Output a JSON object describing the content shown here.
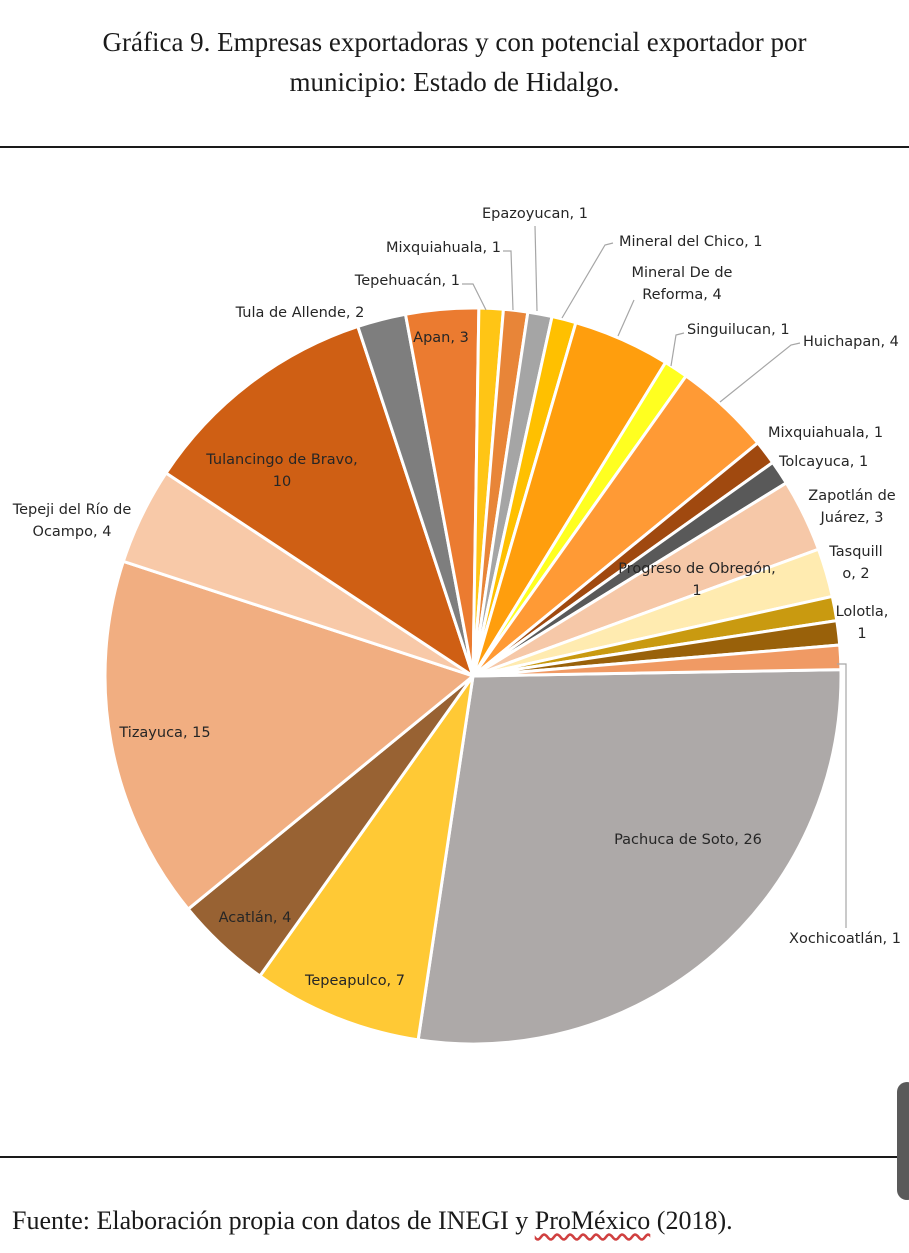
{
  "title_line1": "Gráfica 9. Empresas exportadoras y con potencial exportador por",
  "title_line2": "municipio: Estado de Hidalgo.",
  "source_prefix": "Fuente: Elaboración propia con datos de INEGI y ",
  "source_underlined": "ProMéxico",
  "source_suffix": " (2018).",
  "chart_data": {
    "type": "pie",
    "title": "Gráfica 9. Empresas exportadoras y con potencial exportador por municipio: Estado de Hidalgo.",
    "slices": [
      {
        "label": "Pachuca de Soto, 26",
        "name": "Pachuca de Soto",
        "value": 26,
        "color": "#ADA9A8"
      },
      {
        "label": "Tepeapulco, 7",
        "name": "Tepeapulco",
        "value": 7,
        "color": "#FFC935"
      },
      {
        "label": "Acatlán, 4",
        "name": "Acatlán",
        "value": 4,
        "color": "#986233"
      },
      {
        "label": "Tizayuca, 15",
        "name": "Tizayuca",
        "value": 15,
        "color": "#F1AE81"
      },
      {
        "label": "Tepeji del Río de Ocampo, 4",
        "name": "Tepeji del Río de Ocampo",
        "value": 4,
        "color": "#F8C9A8"
      },
      {
        "label": "Tulancingo de Bravo, 10",
        "name": "Tulancingo de Bravo",
        "value": 10,
        "color": "#CF5F14"
      },
      {
        "label": "Tula de Allende, 2",
        "name": "Tula de Allende",
        "value": 2,
        "color": "#7E7E7E"
      },
      {
        "label": "Apan, 3",
        "name": "Apan",
        "value": 3,
        "color": "#EB7B30"
      },
      {
        "label": "Tepehuacán, 1",
        "name": "Tepehuacán",
        "value": 1,
        "color": "#FFC515"
      },
      {
        "label": "Mixquiahuala, 1",
        "name": "Mixquiahuala",
        "value": 1,
        "color": "#E88538"
      },
      {
        "label": "Epazoyucan, 1",
        "name": "Epazoyucan",
        "value": 1,
        "color": "#A5A5A5"
      },
      {
        "label": "Mineral del Chico, 1",
        "name": "Mineral del Chico",
        "value": 1,
        "color": "#FFC000"
      },
      {
        "label": "Mineral De de Reforma, 4",
        "name": "Mineral De de Reforma",
        "value": 4,
        "color": "#FF9E0D"
      },
      {
        "label": "Singuilucan, 1",
        "name": "Singuilucan",
        "value": 1,
        "color": "#FFFF20"
      },
      {
        "label": "Huichapan, 4",
        "name": "Huichapan",
        "value": 4,
        "color": "#FF9A35"
      },
      {
        "label": "Mixquiahuala, 1",
        "name": "Mixquiahuala",
        "value": 1,
        "color": "#A0490F"
      },
      {
        "label": "Tolcayuca, 1",
        "name": "Tolcayuca",
        "value": 1,
        "color": "#595959"
      },
      {
        "label": "Zapotlán de Juárez, 3",
        "name": "Zapotlán de Juárez",
        "value": 3,
        "color": "#F6C8A8"
      },
      {
        "label": "Tasquillo, 2",
        "name": "Tasquillo",
        "value": 2,
        "color": "#FFEBB0"
      },
      {
        "label": "Lolotla, 1",
        "name": "Lolotla",
        "value": 1,
        "color": "#C99A10"
      },
      {
        "label": "Progreso de Obregón, 1",
        "name": "Progreso de Obregón",
        "value": 1,
        "color": "#99610A"
      },
      {
        "label": "Xochicoatlán, 1",
        "name": "Xochicoatlán",
        "value": 1,
        "color": "#F09A64"
      }
    ]
  }
}
